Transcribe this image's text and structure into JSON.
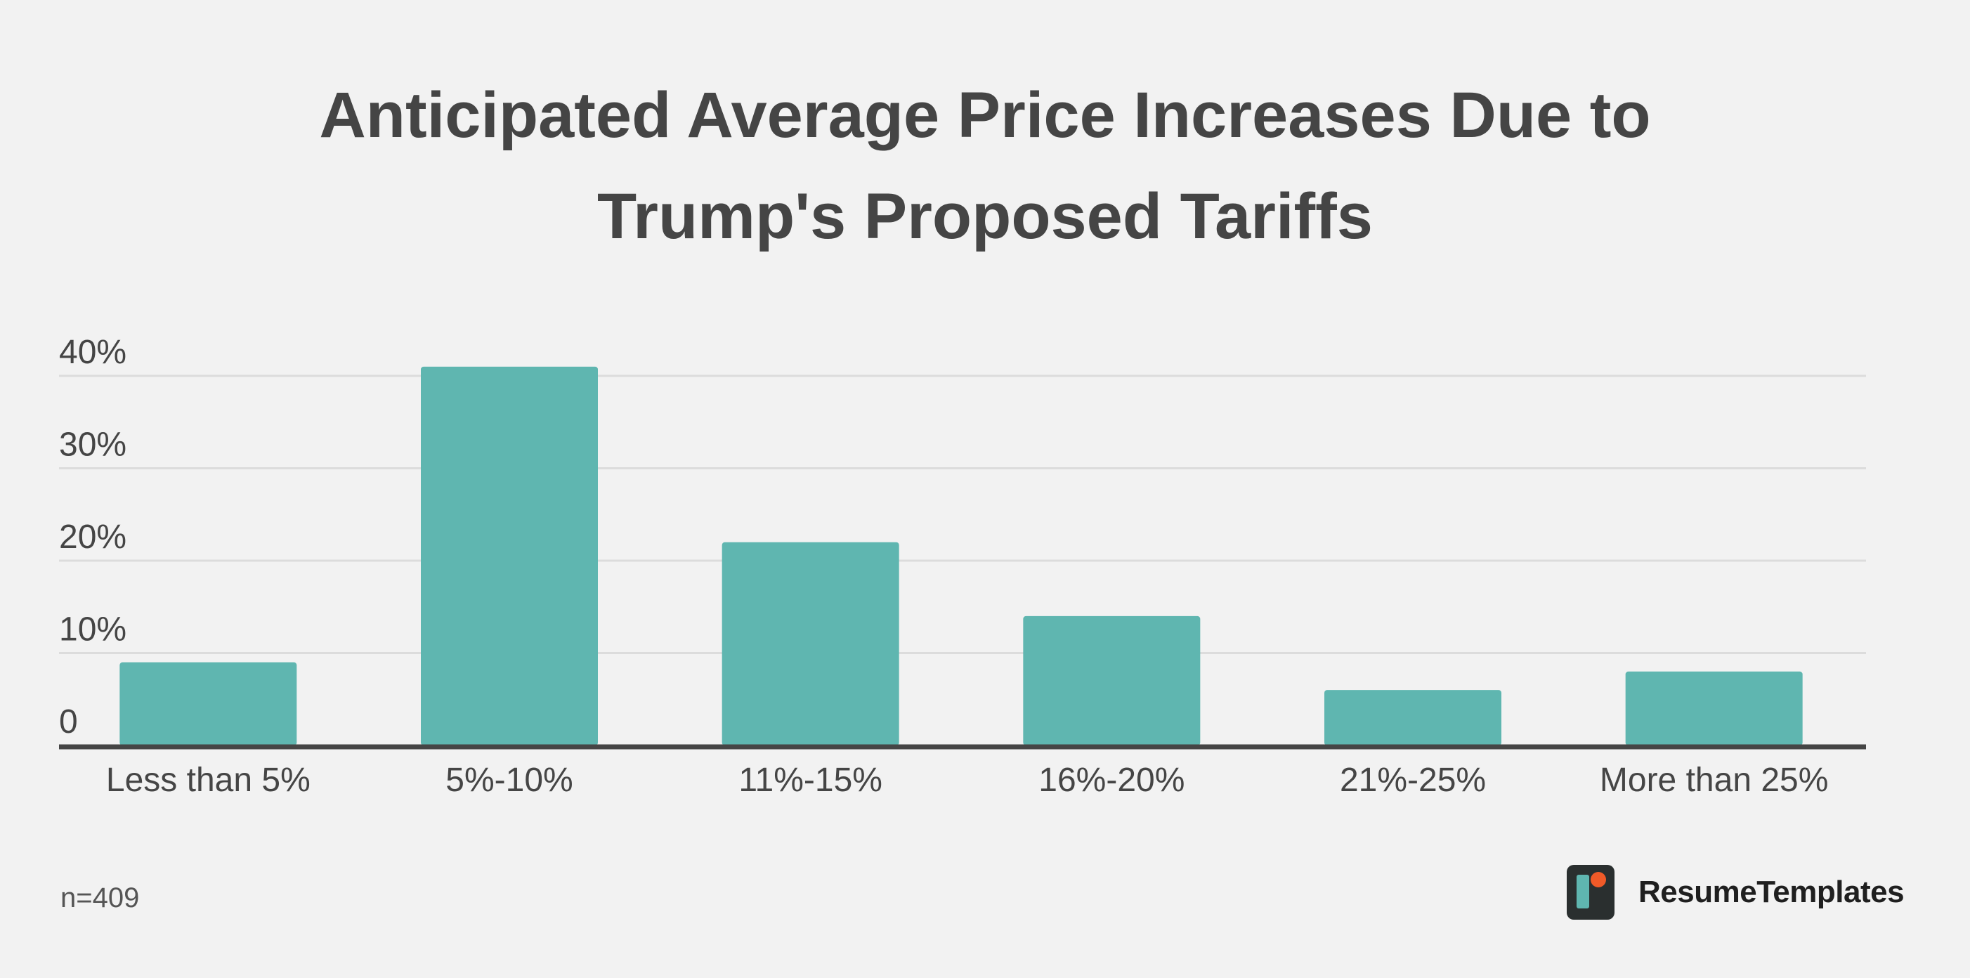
{
  "chart_data": {
    "type": "bar",
    "title_lines": [
      "Anticipated Average Price Increases Due to",
      "Trump's Proposed Tariffs"
    ],
    "categories": [
      "Less than 5%",
      "5%-10%",
      "11%-15%",
      "16%-20%",
      "21%-25%",
      "More than 25%"
    ],
    "values": [
      9,
      41,
      22,
      14,
      6,
      8
    ],
    "yticks": [
      0,
      10,
      20,
      30,
      40
    ],
    "ytick_labels": [
      "0",
      "10%",
      "20%",
      "30%",
      "40%"
    ],
    "ylim": [
      0,
      40
    ],
    "grid": true,
    "xlabel": "",
    "ylabel": "",
    "bar_color": "#5fb6b0",
    "grid_color": "#dcdcdc",
    "axis_color": "#454545",
    "text_color": "#454545"
  },
  "footnote": "n=409",
  "brand": {
    "name": "ResumeTemplates",
    "logo_icon": "resumetemplates-logo-icon",
    "logo_colors": {
      "background": "#2a2f2f",
      "bar": "#5fb6b0",
      "dot": "#f05a28"
    }
  }
}
